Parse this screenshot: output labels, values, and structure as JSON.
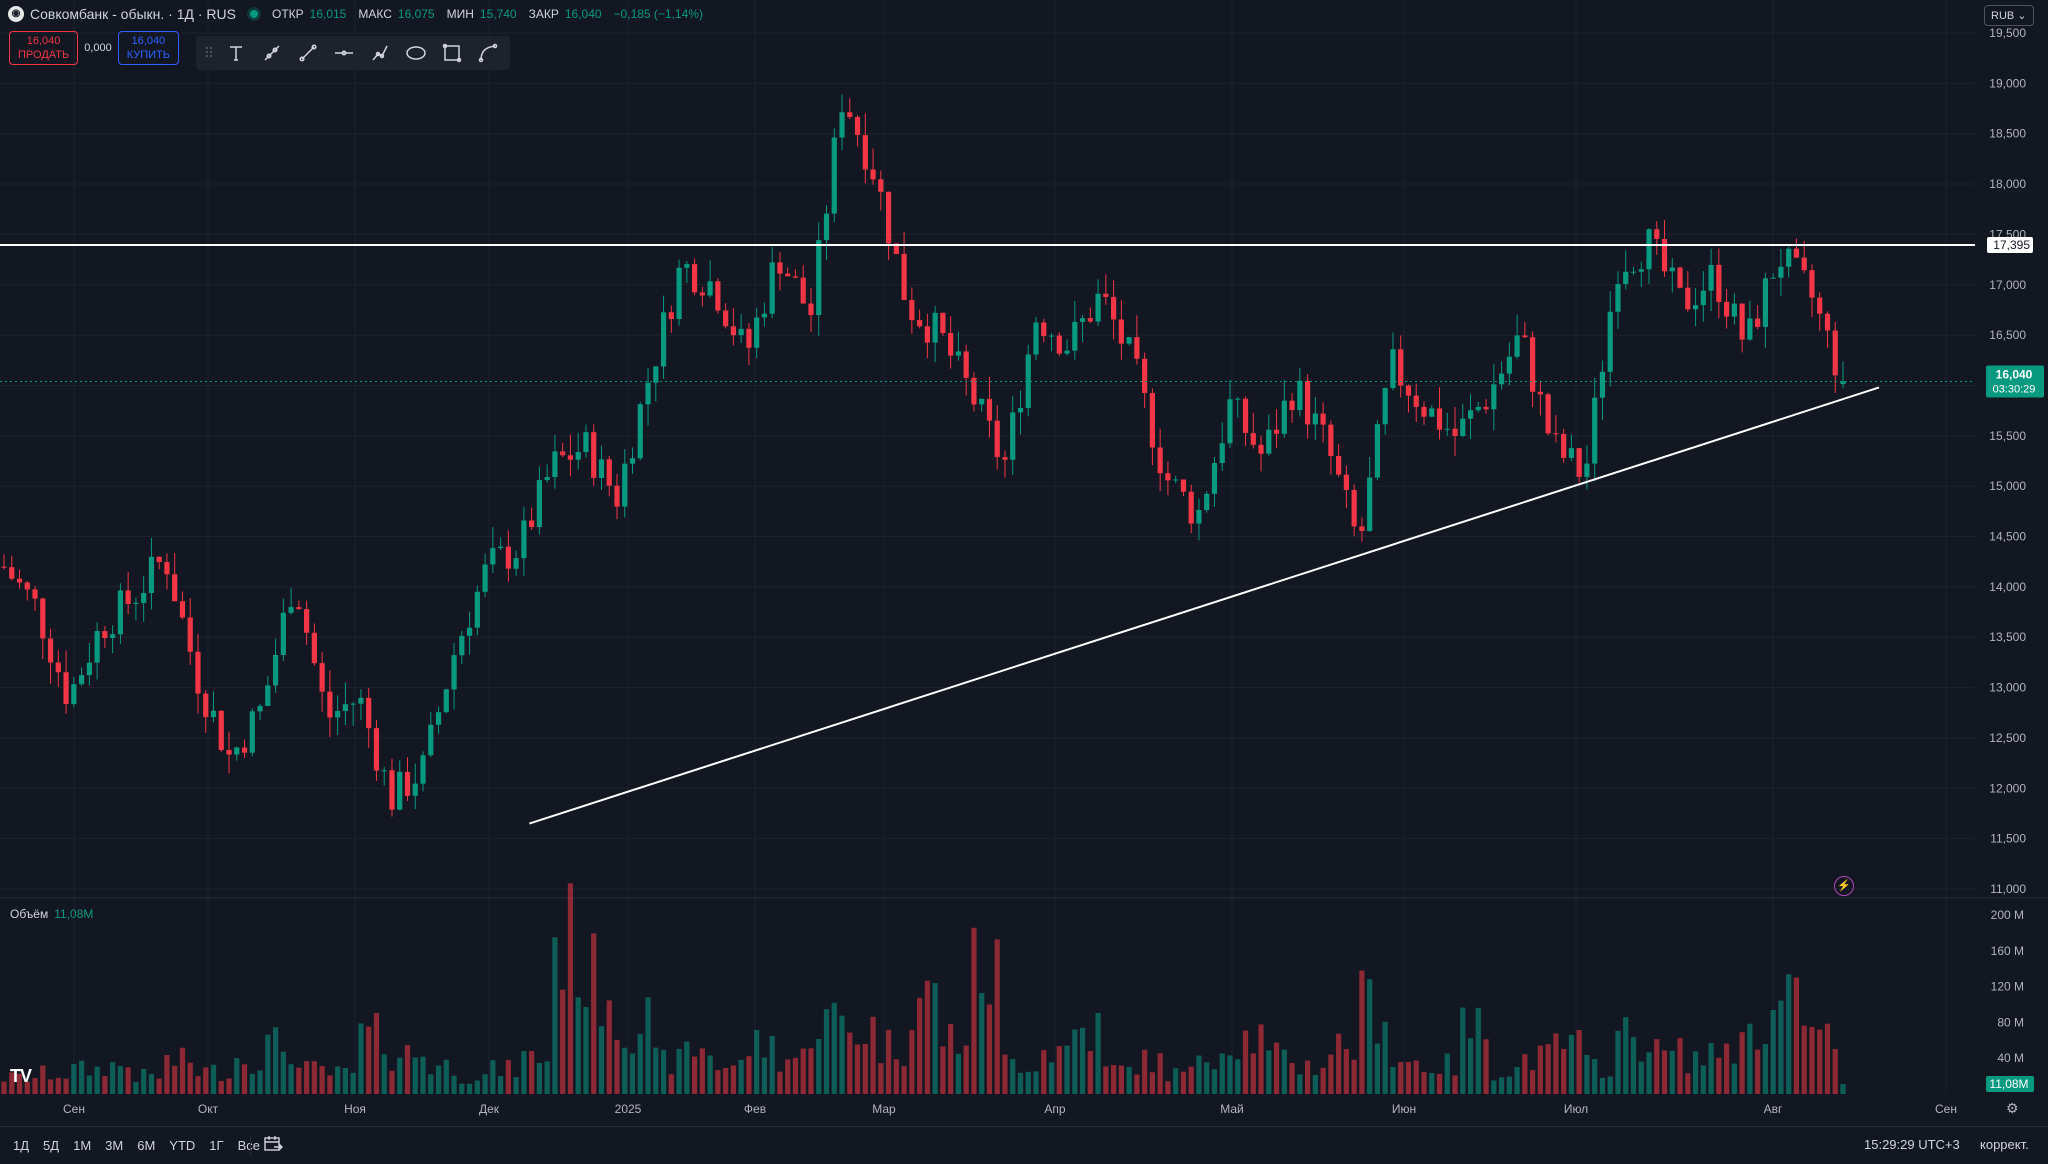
{
  "header": {
    "symbol_title": "Совкомбанк - обыкн. · 1Д · RUS",
    "open_label": "ОТКР",
    "open_value": "16,015",
    "high_label": "МАКС",
    "high_value": "16,075",
    "low_label": "МИН",
    "low_value": "15,740",
    "close_label": "ЗАКР",
    "close_value": "16,040",
    "change_value": "−0,185 (−1,14%)"
  },
  "trade": {
    "sell_price": "16,040",
    "sell_label": "ПРОДАТЬ",
    "spread": "0,000",
    "buy_price": "16,040",
    "buy_label": "КУПИТЬ"
  },
  "toolbar": {
    "tools": [
      "text-tool-icon",
      "trend-line-tool-icon",
      "line-tool-icon",
      "horizontal-ray-tool-icon",
      "path-tool-icon",
      "ellipse-tool-icon",
      "rectangle-tool-icon",
      "curve-tool-icon"
    ]
  },
  "currency": "RUB",
  "price_axis": {
    "ticks": [
      "11,000",
      "11,500",
      "12,000",
      "12,500",
      "13,000",
      "13,500",
      "14,000",
      "14,500",
      "15,000",
      "15,500",
      "16,000",
      "16,500",
      "17,000",
      "17,500",
      "18,000",
      "18,500",
      "19,000",
      "19,500"
    ],
    "horizontal_level_label": "17,395",
    "current_price_label": "16,040",
    "countdown_label": "03:30:29"
  },
  "volume_axis": {
    "ticks": [
      "40M",
      "80M",
      "120M",
      "160M",
      "200M"
    ],
    "current_volume_label": "11,08M"
  },
  "volume_pane": {
    "title": "Объём",
    "value": "11,08M"
  },
  "time_axis": {
    "labels": [
      "Сен",
      "Окт",
      "Ноя",
      "Дек",
      "2025",
      "Фев",
      "Мар",
      "Апр",
      "Май",
      "Июн",
      "Июл",
      "Авг",
      "Сен"
    ]
  },
  "bottom_bar": {
    "ranges": [
      "1Д",
      "5Д",
      "1М",
      "3М",
      "6М",
      "YTD",
      "1Г",
      "Все"
    ],
    "clock": "15:29:29 UTC+3",
    "adjust_label": "коррект."
  },
  "chart_data": {
    "type": "candlestick",
    "price_range": [
      11000,
      19500
    ],
    "volume_range": [
      0,
      200000000
    ],
    "horizontal_level": 17395,
    "last_close": 16040,
    "last_volume": 11080000,
    "trendline": {
      "start": {
        "date": "2024-12-10",
        "price": 11650
      },
      "end": {
        "date": "2025-08-20",
        "price": 15980
      }
    },
    "colors": {
      "up": "#089981",
      "down": "#f23645",
      "background": "#131722",
      "grid": "#1e222d"
    },
    "months": [
      "2024-09",
      "2024-10",
      "2024-11",
      "2024-12",
      "2025-01",
      "2025-02",
      "2025-03",
      "2025-04",
      "2025-05",
      "2025-06",
      "2025-07",
      "2025-08",
      "2025-09"
    ],
    "close_anchors": [
      14200,
      13800,
      12900,
      13600,
      13900,
      14300,
      13100,
      12300,
      12800,
      14100,
      12700,
      12900,
      11900,
      12200,
      13400,
      14200,
      14400,
      15200,
      15400,
      14900,
      16100,
      17200,
      17000,
      16300,
      17300,
      16700,
      18900,
      18100,
      16800,
      16500,
      15900,
      15200,
      16700,
      16400,
      16900,
      16200,
      15100,
      14700,
      15800,
      15300,
      16000,
      15400,
      14400,
      16200,
      15800,
      15500,
      15900,
      16500,
      15400,
      15100,
      17200,
      17400,
      16800,
      17100,
      16400,
      17300,
      16900,
      16040
    ],
    "volume_levels_millions": [
      20,
      25,
      30,
      35,
      22,
      40,
      28,
      45,
      60,
      30,
      25,
      70,
      50,
      35,
      22,
      30,
      45,
      190,
      140,
      90,
      40,
      55,
      35,
      60,
      45,
      90,
      80,
      60,
      120,
      70,
      150,
      40,
      55,
      80,
      30,
      40,
      25,
      55,
      70,
      45,
      35,
      60,
      110,
      40,
      35,
      80,
      30,
      45,
      60,
      35,
      70,
      50,
      45,
      60,
      90,
      110,
      70,
      11
    ]
  }
}
